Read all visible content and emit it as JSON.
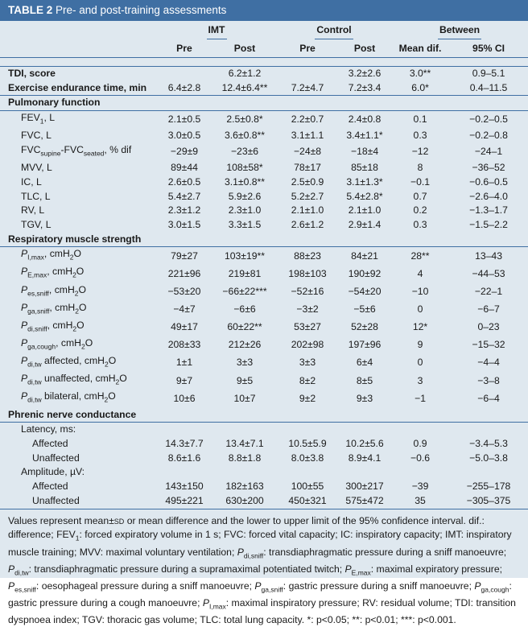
{
  "title": {
    "label": "TABLE 2",
    "text": "Pre- and post-training assessments"
  },
  "groups": {
    "imt": "IMT",
    "control": "Control",
    "between": "Between"
  },
  "subheaders": [
    "Pre",
    "Post",
    "Pre",
    "Post",
    "Mean dif.",
    "95% CI"
  ],
  "rows": [
    {
      "id": "tdi",
      "label": "TDI, score",
      "indent": 0,
      "bold": true,
      "values": [
        "",
        "6.2±1.2",
        "",
        "3.2±2.6",
        "3.0**",
        "0.9–5.1"
      ]
    },
    {
      "id": "exercise",
      "label": "Exercise endurance time, min",
      "indent": 0,
      "bold": true,
      "values": [
        "6.4±2.8",
        "12.4±6.4**",
        "7.2±4.7",
        "7.2±3.4",
        "6.0*",
        "0.4–11.5"
      ]
    },
    {
      "id": "pulm-section",
      "label": "Pulmonary function",
      "indent": 0,
      "bold": true,
      "section": true,
      "values": [
        "",
        "",
        "",
        "",
        "",
        ""
      ]
    },
    {
      "id": "fev1",
      "label": "FEV1, L",
      "indent": 1,
      "values": [
        "2.1±0.5",
        "2.5±0.8*",
        "2.2±0.7",
        "2.4±0.8",
        "0.1",
        "−0.2–0.5"
      ]
    },
    {
      "id": "fvc",
      "label": "FVC, L",
      "indent": 1,
      "values": [
        "3.0±0.5",
        "3.6±0.8**",
        "3.1±1.1",
        "3.4±1.1*",
        "0.3",
        "−0.2–0.8"
      ]
    },
    {
      "id": "fvc-dif",
      "label": "FVCsupine-FVCseated, % dif",
      "indent": 1,
      "values": [
        "−29±9",
        "−23±6",
        "−24±8",
        "−18±4",
        "−12",
        "−24–1"
      ]
    },
    {
      "id": "mvv",
      "label": "MVV, L",
      "indent": 1,
      "values": [
        "89±44",
        "108±58*",
        "78±17",
        "85±18",
        "8",
        "−36–52"
      ]
    },
    {
      "id": "ic",
      "label": "IC, L",
      "indent": 1,
      "values": [
        "2.6±0.5",
        "3.1±0.8**",
        "2.5±0.9",
        "3.1±1.3*",
        "−0.1",
        "−0.6–0.5"
      ]
    },
    {
      "id": "tlc",
      "label": "TLC, L",
      "indent": 1,
      "values": [
        "5.4±2.7",
        "5.9±2.6",
        "5.2±2.7",
        "5.4±2.8*",
        "0.7",
        "−2.6–4.0"
      ]
    },
    {
      "id": "rv",
      "label": "RV, L",
      "indent": 1,
      "values": [
        "2.3±1.2",
        "2.3±1.0",
        "2.1±1.0",
        "2.1±1.0",
        "0.2",
        "−1.3–1.7"
      ]
    },
    {
      "id": "tgv",
      "label": "TGV, L",
      "indent": 1,
      "values": [
        "3.0±1.5",
        "3.3±1.5",
        "2.6±1.2",
        "2.9±1.4",
        "0.3",
        "−1.5–2.2"
      ]
    },
    {
      "id": "resp-section",
      "label": "Respiratory muscle strength",
      "indent": 0,
      "bold": true,
      "section": true,
      "values": [
        "",
        "",
        "",
        "",
        "",
        ""
      ]
    },
    {
      "id": "pimax",
      "label": "PI,max, cmH2O",
      "indent": 1,
      "values": [
        "79±27",
        "103±19**",
        "88±23",
        "84±21",
        "28**",
        "13–43"
      ]
    },
    {
      "id": "pemax",
      "label": "PE,max, cmH2O",
      "indent": 1,
      "values": [
        "221±96",
        "219±81",
        "198±103",
        "190±92",
        "4",
        "−44–53"
      ]
    },
    {
      "id": "pes-sniff",
      "label": "Pes,sniff, cmH2O",
      "indent": 1,
      "values": [
        "−53±20",
        "−66±22***",
        "−52±16",
        "−54±20",
        "−10",
        "−22–1"
      ]
    },
    {
      "id": "pga-sniff",
      "label": "Pga,sniff, cmH2O",
      "indent": 1,
      "values": [
        "−4±7",
        "−6±6",
        "−3±2",
        "−5±6",
        "0",
        "−6–7"
      ]
    },
    {
      "id": "pdi-sniff",
      "label": "Pdi,sniff, cmH2O",
      "indent": 1,
      "values": [
        "49±17",
        "60±22**",
        "53±27",
        "52±28",
        "12*",
        "0–23"
      ]
    },
    {
      "id": "pga-cough",
      "label": "Pga,cough, cmH2O",
      "indent": 1,
      "values": [
        "208±33",
        "212±26",
        "202±98",
        "197±96",
        "9",
        "−15–32"
      ]
    },
    {
      "id": "pdi-tw-aff",
      "label": "Pdi,tw affected, cmH2O",
      "indent": 1,
      "values": [
        "1±1",
        "3±3",
        "3±3",
        "6±4",
        "0",
        "−4–4"
      ]
    },
    {
      "id": "pdi-tw-unaff",
      "label": "Pdi,tw unaffected, cmH2O",
      "indent": 1,
      "values": [
        "9±7",
        "9±5",
        "8±2",
        "8±5",
        "3",
        "−3–8"
      ]
    },
    {
      "id": "pdi-tw-bil",
      "label": "Pdi,tw bilateral, cmH2O",
      "indent": 1,
      "values": [
        "10±6",
        "10±7",
        "9±2",
        "9±3",
        "−1",
        "−6–4"
      ]
    },
    {
      "id": "phrenic-section",
      "label": "Phrenic nerve conductance",
      "indent": 0,
      "bold": true,
      "section": true,
      "values": [
        "",
        "",
        "",
        "",
        "",
        ""
      ]
    },
    {
      "id": "latency",
      "label": "Latency, ms:",
      "indent": 1,
      "values": [
        "",
        "",
        "",
        "",
        "",
        ""
      ]
    },
    {
      "id": "lat-aff",
      "label": "Affected",
      "indent": 2,
      "values": [
        "14.3±7.7",
        "13.4±7.1",
        "10.5±5.9",
        "10.2±5.6",
        "0.9",
        "−3.4–5.3"
      ]
    },
    {
      "id": "lat-unaff",
      "label": "Unaffected",
      "indent": 2,
      "values": [
        "8.6±1.6",
        "8.8±1.8",
        "8.0±3.8",
        "8.9±4.1",
        "−0.6",
        "−5.0–3.8"
      ]
    },
    {
      "id": "amplitude",
      "label": "Amplitude, µV:",
      "indent": 1,
      "values": [
        "",
        "",
        "",
        "",
        "",
        ""
      ]
    },
    {
      "id": "amp-aff",
      "label": "Affected",
      "indent": 2,
      "values": [
        "143±150",
        "182±163",
        "100±55",
        "300±217",
        "−39",
        "−255–178"
      ]
    },
    {
      "id": "amp-unaff",
      "label": "Unaffected",
      "indent": 2,
      "values": [
        "495±221",
        "630±200",
        "450±321",
        "575±472",
        "35",
        "−305–375"
      ]
    }
  ],
  "footnote": "Values represent mean±SD or mean difference and the lower to upper limit of the 95% confidence interval. dif.: difference; FEV1: forced expiratory volume in 1 s; FVC: forced vital capacity; IC: inspiratory capacity; IMT: inspiratory muscle training; MVV: maximal voluntary ventilation; Pdi,sniff: transdiaphragmatic pressure during a sniff manoeuvre; Pdi,tw: transdiaphragmatic pressure during a supramaximal potentiated twitch; PE,max: maximal expiratory pressure; Pes,sniff: oesophageal pressure during a sniff manoeuvre; Pga,sniff: gastric pressure during a sniff manoeuvre; Pga,cough: gastric pressure during a cough manoeuvre; PI,max: maximal inspiratory pressure; RV: residual volume; TDI: transition dyspnoea index; TGV: thoracic gas volume; TLC: total lung capacity. *: p<0.05; **: p<0.01; ***: p<0.001.",
  "colors": {
    "header_bg": "#3f6fa3",
    "table_bg": "#dfe8ef",
    "rule": "#3f6fa3"
  }
}
